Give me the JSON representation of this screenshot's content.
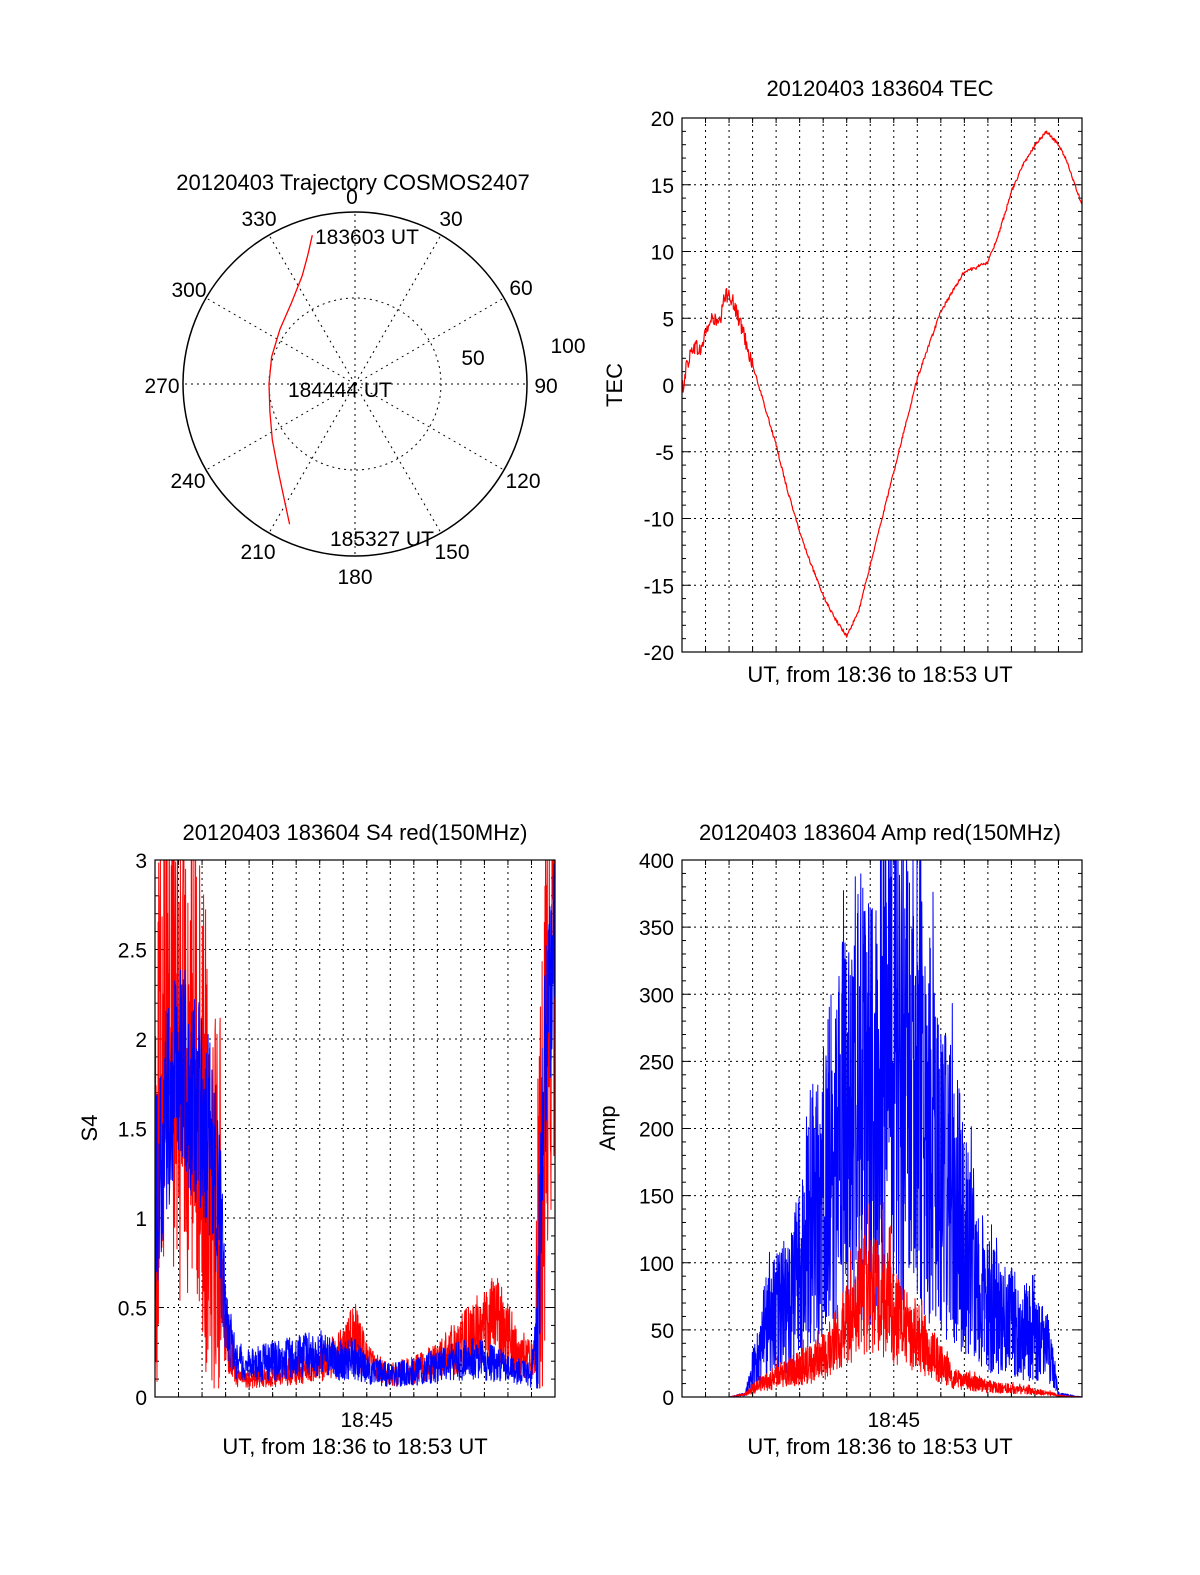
{
  "chart_data": [
    {
      "id": "trajectory",
      "type": "polar",
      "title": "20120403 Trajectory COSMOS2407",
      "angle_labels": [
        "0",
        "30",
        "60",
        "90",
        "120",
        "150",
        "180",
        "210",
        "240",
        "270",
        "300",
        "330"
      ],
      "radial_labels": [
        "50",
        "100"
      ],
      "rlim": [
        0,
        100
      ],
      "grid": true,
      "series": [
        {
          "color": "#ff0000",
          "points": [
            {
              "az": 344,
              "r": 90
            },
            {
              "az": 340,
              "r": 80
            },
            {
              "az": 334,
              "r": 70
            },
            {
              "az": 322,
              "r": 60
            },
            {
              "az": 306,
              "r": 54
            },
            {
              "az": 288,
              "r": 51
            },
            {
              "az": 270,
              "r": 50
            },
            {
              "az": 252,
              "r": 52
            },
            {
              "az": 236,
              "r": 58
            },
            {
              "az": 222,
              "r": 67
            },
            {
              "az": 212,
              "r": 78
            },
            {
              "az": 205,
              "r": 90
            }
          ]
        }
      ],
      "annotations": [
        {
          "text": "183603 UT",
          "az": 348,
          "r": 90
        },
        {
          "text": "184444 UT",
          "az": 270,
          "r": 5
        },
        {
          "text": "185327 UT",
          "az": 200,
          "r": 90
        }
      ]
    },
    {
      "id": "tec",
      "type": "line",
      "title": "20120403 183604 TEC",
      "xlabel": "UT, from 18:36 to 18:53 UT",
      "ylabel": "TEC",
      "xlim": [
        0,
        17
      ],
      "ylim": [
        -20,
        20
      ],
      "yticks": [
        -20,
        -15,
        -10,
        -5,
        0,
        5,
        10,
        15,
        20
      ],
      "grid": true,
      "series": [
        {
          "color": "#ff0000",
          "x": [
            0,
            0.2,
            0.5,
            0.8,
            1.0,
            1.3,
            1.6,
            1.8,
            2.0,
            2.3,
            2.6,
            3.0,
            3.5,
            4.0,
            4.5,
            5.0,
            5.5,
            6.0,
            6.5,
            7.0,
            7.5,
            8.0,
            8.5,
            9.0,
            9.5,
            10.0,
            10.5,
            11.0,
            11.5,
            12.0,
            12.5,
            13.0,
            13.5,
            14.0,
            14.5,
            15.0,
            15.5,
            16.0,
            16.3,
            16.5,
            16.7,
            16.9,
            17.0
          ],
          "y": [
            -0.5,
            1.5,
            3.0,
            2.5,
            4.0,
            5.0,
            4.5,
            6.5,
            7.0,
            5.5,
            4.0,
            1.5,
            -1.5,
            -4.5,
            -8.0,
            -11.0,
            -13.5,
            -15.8,
            -17.5,
            -18.8,
            -17.0,
            -13.5,
            -10.0,
            -6.5,
            -3.0,
            0.5,
            3.0,
            5.5,
            7.0,
            8.5,
            8.8,
            9.2,
            11.5,
            14.5,
            16.5,
            18.0,
            19.0,
            18.0,
            17.0,
            16.0,
            15.0,
            14.0,
            13.5
          ]
        }
      ]
    },
    {
      "id": "s4",
      "type": "line",
      "title": "20120403 183604 S4 red(150MHz)",
      "xlabel": "UT, from 18:36 to 18:53 UT",
      "ylabel": "S4",
      "xtick_label": "18:45",
      "xtick_pos": 9,
      "xlim": [
        0,
        17
      ],
      "ylim": [
        0,
        3
      ],
      "yticks": [
        0,
        0.5,
        1,
        1.5,
        2,
        2.5,
        3
      ],
      "grid": true,
      "series": [
        {
          "color": "#ff0000",
          "x": [
            0,
            0.5,
            1.0,
            1.5,
            2.0,
            2.5,
            2.8,
            3.0,
            3.5,
            4.0,
            5.0,
            6.0,
            7.0,
            8.0,
            8.5,
            9.0,
            9.5,
            10.0,
            11.0,
            12.0,
            13.0,
            13.5,
            14.0,
            14.5,
            15.0,
            15.5,
            16.0,
            16.3,
            16.5,
            17.0
          ],
          "y": [
            1.2,
            2.5,
            1.8,
            2.0,
            1.6,
            1.4,
            0.8,
            0.35,
            0.12,
            0.1,
            0.12,
            0.15,
            0.18,
            0.25,
            0.35,
            0.2,
            0.15,
            0.12,
            0.15,
            0.2,
            0.3,
            0.35,
            0.4,
            0.45,
            0.35,
            0.25,
            0.2,
            0.4,
            1.5,
            2.8
          ]
        },
        {
          "color": "#0000ff",
          "x": [
            0,
            0.5,
            1.0,
            1.5,
            2.0,
            2.5,
            2.8,
            3.0,
            3.5,
            4.0,
            5.0,
            6.0,
            7.0,
            8.0,
            8.5,
            9.0,
            9.5,
            10.0,
            11.0,
            12.0,
            13.0,
            13.5,
            14.0,
            14.5,
            15.0,
            15.5,
            16.0,
            16.3,
            16.5,
            17.0
          ],
          "y": [
            1.1,
            1.6,
            1.9,
            1.7,
            1.6,
            1.3,
            0.9,
            0.4,
            0.2,
            0.18,
            0.2,
            0.22,
            0.25,
            0.2,
            0.22,
            0.15,
            0.14,
            0.12,
            0.14,
            0.18,
            0.2,
            0.22,
            0.2,
            0.18,
            0.16,
            0.14,
            0.12,
            0.5,
            1.8,
            2.6
          ]
        }
      ]
    },
    {
      "id": "amp",
      "type": "line",
      "title": "20120403 183604 Amp red(150MHz)",
      "xlabel": "UT, from 18:36 to 18:53 UT",
      "ylabel": "Amp",
      "xtick_label": "18:45",
      "xtick_pos": 9,
      "xlim": [
        0,
        17
      ],
      "ylim": [
        0,
        400
      ],
      "yticks": [
        0,
        50,
        100,
        150,
        200,
        250,
        300,
        350,
        400
      ],
      "grid": true,
      "series": [
        {
          "color": "#0000ff",
          "x": [
            0,
            1.0,
            2.0,
            2.7,
            3.0,
            3.5,
            4.0,
            4.5,
            5.0,
            5.5,
            6.0,
            6.5,
            7.0,
            7.5,
            8.0,
            8.5,
            9.0,
            9.5,
            10.0,
            10.5,
            11.0,
            11.5,
            12.0,
            12.5,
            13.0,
            13.5,
            14.0,
            14.5,
            15.0,
            15.5,
            15.8,
            16.0,
            17.0
          ],
          "y": [
            0,
            0,
            0,
            2,
            20,
            50,
            60,
            70,
            90,
            130,
            160,
            180,
            200,
            230,
            210,
            240,
            260,
            240,
            230,
            200,
            170,
            150,
            120,
            90,
            70,
            60,
            55,
            50,
            45,
            40,
            20,
            2,
            0
          ]
        },
        {
          "color": "#ff0000",
          "x": [
            0,
            1.0,
            2.0,
            2.7,
            3.0,
            3.5,
            4.0,
            4.5,
            5.0,
            5.5,
            6.0,
            6.5,
            7.0,
            7.5,
            8.0,
            8.5,
            9.0,
            9.5,
            10.0,
            10.5,
            11.0,
            11.5,
            12.0,
            12.5,
            13.0,
            13.5,
            14.0,
            14.5,
            15.0,
            15.5,
            15.8,
            16.0,
            17.0
          ],
          "y": [
            0,
            0,
            0,
            2,
            6,
            10,
            15,
            18,
            22,
            25,
            30,
            40,
            55,
            70,
            80,
            75,
            60,
            50,
            45,
            35,
            25,
            15,
            12,
            10,
            8,
            7,
            6,
            5,
            4,
            3,
            2,
            1,
            0
          ]
        }
      ]
    }
  ]
}
